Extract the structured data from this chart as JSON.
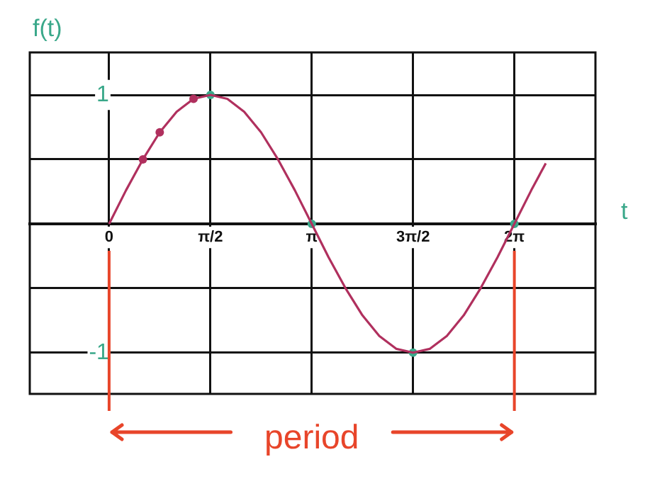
{
  "chart_data": {
    "type": "line",
    "xlabel": "t",
    "ylabel": "f(t)",
    "xlim": [
      -1.23,
      7.54
    ],
    "ylim": [
      -1.32,
      1.33
    ],
    "xticks": [
      {
        "value": 0,
        "label": "0"
      },
      {
        "value": 1.571,
        "label": "π/2"
      },
      {
        "value": 3.142,
        "label": "π"
      },
      {
        "value": 4.712,
        "label": "3π/2"
      },
      {
        "value": 6.283,
        "label": "2π"
      }
    ],
    "yticks": [
      -1,
      {
        "value": -0.5,
        "label": null
      },
      {
        "value": 0,
        "label": null
      },
      {
        "value": 0.5,
        "label": null
      },
      1
    ],
    "grid": true,
    "legend": false,
    "series": [
      {
        "type": "line",
        "color": "#b0305e",
        "marker": "none",
        "x": [
          0,
          0.262,
          0.524,
          0.785,
          1.047,
          1.309,
          1.571,
          1.833,
          2.094,
          2.356,
          2.618,
          2.88,
          3.142,
          3.403,
          3.665,
          3.927,
          4.189,
          4.451,
          4.712,
          4.974,
          5.236,
          5.498,
          5.76,
          6.021,
          6.283,
          6.545,
          6.77
        ],
        "values": [
          0,
          0.26,
          0.5,
          0.71,
          0.87,
          0.97,
          1,
          0.97,
          0.87,
          0.71,
          0.5,
          0.26,
          0,
          -0.26,
          -0.5,
          -0.71,
          -0.87,
          -0.97,
          -1,
          -0.97,
          -0.87,
          -0.71,
          -0.5,
          -0.26,
          0,
          0.26,
          0.47
        ]
      },
      {
        "type": "scatter",
        "color": "#b0305e",
        "marker": "circle",
        "x": [
          0.524,
          0.785,
          1.309
        ],
        "values": [
          0.5,
          0.71,
          0.97
        ]
      },
      {
        "type": "scatter",
        "color": "#3aa88a",
        "marker": "circle",
        "x": [
          1.571,
          3.142,
          4.712,
          6.283
        ],
        "values": [
          1,
          0,
          -1,
          0
        ]
      }
    ],
    "ref_lines": [
      {
        "axis": "x",
        "value": 0,
        "color": "#e8452a"
      },
      {
        "axis": "x",
        "value": 6.283,
        "color": "#e8452a"
      }
    ],
    "annotations": [
      "period"
    ]
  }
}
